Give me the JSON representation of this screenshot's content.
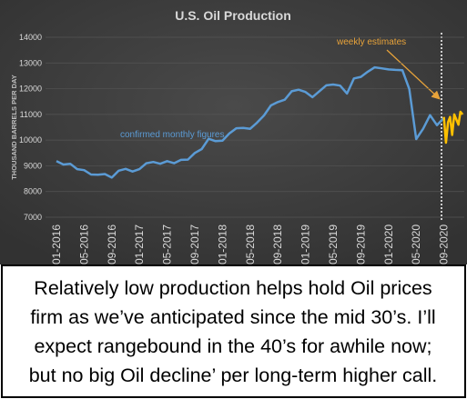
{
  "chart_data": {
    "type": "line",
    "title": "U.S. Oil Production",
    "y_label": "THOUSAND BARRELS PER DAY",
    "categories": [
      "01-2016",
      null,
      null,
      null,
      "05-2016",
      null,
      null,
      null,
      "09-2016",
      null,
      null,
      null,
      "01-2017",
      null,
      null,
      null,
      "05-2017",
      null,
      null,
      null,
      "09-2017",
      null,
      null,
      null,
      "01-2018",
      null,
      null,
      null,
      "05-2018",
      null,
      null,
      null,
      "09-2018",
      null,
      null,
      null,
      "01-2019",
      null,
      null,
      null,
      "05-2019",
      null,
      null,
      null,
      "09-2019",
      null,
      null,
      null,
      "01-2020",
      null,
      null,
      null,
      "05-2020",
      null,
      null,
      null,
      "09-2020"
    ],
    "series": [
      {
        "color": "#5b9bd5",
        "values": [
          9180,
          9050,
          9080,
          8870,
          8830,
          8660,
          8650,
          8680,
          8540,
          8810,
          8880,
          8780,
          8870,
          9100,
          9150,
          9080,
          9180,
          9100,
          9230,
          9240,
          9500,
          9650,
          10050,
          9960,
          9980,
          10260,
          10460,
          10470,
          10440,
          10680,
          10960,
          11350,
          11480,
          11570,
          11900,
          11960,
          11870,
          11670,
          11900,
          12130,
          12160,
          12120,
          11810,
          12400,
          12460,
          12660,
          12830,
          12790,
          12750,
          12730,
          12720,
          11990,
          10040,
          10440,
          10970,
          10580,
          10860
        ]
      },
      {
        "color": "#ffc000",
        "x": [
          56,
          56.3,
          56.6,
          56.9,
          57.2,
          57.5,
          57.8,
          58.1,
          58.4,
          58.7
        ],
        "values": [
          10900,
          9900,
          10700,
          10900,
          10200,
          11000,
          10800,
          10600,
          11100,
          11000
        ]
      }
    ],
    "annotations": [
      "confirmed monthly figures",
      "weekly estimates"
    ],
    "ylim": [
      7000,
      14000
    ],
    "yticks": [
      7000,
      8000,
      9000,
      10000,
      11000,
      12000,
      13000,
      14000
    ],
    "grid": true
  },
  "caption": [
    "Relatively low production helps hold Oil prices",
    "firm as we’ve anticipated since the mid 30’s. I’ll",
    "expect rangebound in the 40’s for awhile now;",
    "but no big Oil decline’ per long-term higher call."
  ]
}
